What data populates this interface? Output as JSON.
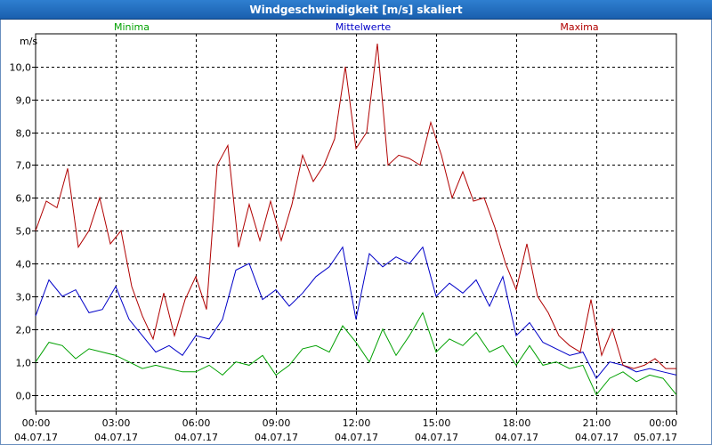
{
  "window": {
    "title": "Windgeschwindigkeit [m/s] skaliert"
  },
  "chart_data": {
    "type": "line",
    "title": "Windgeschwindigkeit [m/s] skaliert",
    "ylabel": "m/s",
    "ylim": [
      -0.5,
      11.0
    ],
    "xlim": [
      0,
      24
    ],
    "grid": true,
    "y_ticks": [
      0,
      1,
      2,
      3,
      4,
      5,
      6,
      7,
      8,
      9,
      10
    ],
    "y_tick_labels": [
      "0,0",
      "1,0",
      "2,0",
      "3,0",
      "4,0",
      "5,0",
      "6,0",
      "7,0",
      "8,0",
      "9,0",
      "10,0"
    ],
    "x_ticks": [
      0,
      3,
      6,
      9,
      12,
      15,
      18,
      21,
      24
    ],
    "x_tick_times": [
      "00:00",
      "03:00",
      "06:00",
      "09:00",
      "12:00",
      "15:00",
      "18:00",
      "21:00",
      "00:00"
    ],
    "x_tick_dates": [
      "04.07.17",
      "04.07.17",
      "04.07.17",
      "04.07.17",
      "04.07.17",
      "04.07.17",
      "04.07.17",
      "04.07.17",
      "05.07.17"
    ],
    "series": [
      {
        "name": "Minima",
        "color": "#00a000",
        "x": [
          0,
          0.5,
          1,
          1.5,
          2,
          2.5,
          3,
          3.5,
          4,
          4.5,
          5,
          5.5,
          6,
          6.5,
          7,
          7.5,
          8,
          8.5,
          9,
          9.5,
          10,
          10.5,
          11,
          11.5,
          12,
          12.5,
          13,
          13.5,
          14,
          14.5,
          15,
          15.5,
          16,
          16.5,
          17,
          17.5,
          18,
          18.5,
          19,
          19.5,
          20,
          20.5,
          21,
          21.5,
          22,
          22.5,
          23,
          23.5,
          24
        ],
        "values": [
          1.0,
          1.6,
          1.5,
          1.1,
          1.4,
          1.3,
          1.2,
          1.0,
          0.8,
          0.9,
          0.8,
          0.7,
          0.7,
          0.9,
          0.6,
          1.0,
          0.9,
          1.2,
          0.6,
          0.9,
          1.4,
          1.5,
          1.3,
          2.1,
          1.6,
          1.0,
          2.0,
          1.2,
          1.8,
          2.5,
          1.3,
          1.7,
          1.5,
          1.9,
          1.3,
          1.5,
          0.9,
          1.5,
          0.9,
          1.0,
          0.8,
          0.9,
          0.0,
          0.5,
          0.7,
          0.4,
          0.6,
          0.5,
          0.0
        ]
      },
      {
        "name": "Mittelwerte",
        "color": "#0000c8",
        "x": [
          0,
          0.5,
          1,
          1.5,
          2,
          2.5,
          3,
          3.5,
          4,
          4.5,
          5,
          5.5,
          6,
          6.5,
          7,
          7.5,
          8,
          8.5,
          9,
          9.5,
          10,
          10.5,
          11,
          11.5,
          12,
          12.5,
          13,
          13.5,
          14,
          14.5,
          15,
          15.5,
          16,
          16.5,
          17,
          17.5,
          18,
          18.5,
          19,
          19.5,
          20,
          20.5,
          21,
          21.5,
          22,
          22.5,
          23,
          23.5,
          24
        ],
        "values": [
          2.4,
          3.5,
          3.0,
          3.2,
          2.5,
          2.6,
          3.3,
          2.3,
          1.8,
          1.3,
          1.5,
          1.2,
          1.8,
          1.7,
          2.3,
          3.8,
          4.0,
          2.9,
          3.2,
          2.7,
          3.1,
          3.6,
          3.9,
          4.5,
          2.3,
          4.3,
          3.9,
          4.2,
          4.0,
          4.5,
          3.0,
          3.4,
          3.1,
          3.5,
          2.7,
          3.6,
          1.8,
          2.2,
          1.6,
          1.4,
          1.2,
          1.3,
          0.5,
          1.0,
          0.9,
          0.7,
          0.8,
          0.7,
          0.6
        ]
      },
      {
        "name": "Maxima",
        "color": "#b00000",
        "x": [
          0,
          0.4,
          0.8,
          1.2,
          1.6,
          2,
          2.4,
          2.8,
          3.2,
          3.6,
          4,
          4.4,
          4.8,
          5.2,
          5.6,
          6,
          6.4,
          6.8,
          7.2,
          7.6,
          8,
          8.4,
          8.8,
          9.2,
          9.6,
          10,
          10.4,
          10.8,
          11.2,
          11.6,
          12,
          12.4,
          12.8,
          13.2,
          13.6,
          14,
          14.4,
          14.8,
          15.2,
          15.6,
          16,
          16.4,
          16.8,
          17.2,
          17.6,
          18,
          18.4,
          18.8,
          19.2,
          19.6,
          20,
          20.4,
          20.8,
          21.2,
          21.6,
          22,
          22.4,
          22.8,
          23.2,
          23.6,
          24
        ],
        "values": [
          5.0,
          5.9,
          5.7,
          6.9,
          4.5,
          5.0,
          6.0,
          4.6,
          5.0,
          3.3,
          2.4,
          1.7,
          3.1,
          1.8,
          2.9,
          3.6,
          2.6,
          7.0,
          7.6,
          4.5,
          5.8,
          4.7,
          5.9,
          4.7,
          5.8,
          7.3,
          6.5,
          7.0,
          7.8,
          10.0,
          7.5,
          8.0,
          10.7,
          7.0,
          7.3,
          7.2,
          7.0,
          8.3,
          7.3,
          6.0,
          6.8,
          5.9,
          6.0,
          5.1,
          4.0,
          3.2,
          4.6,
          3.0,
          2.5,
          1.8,
          1.5,
          1.3,
          2.9,
          1.2,
          2.0,
          0.9,
          0.8,
          0.9,
          1.1,
          0.8,
          0.8
        ]
      }
    ]
  }
}
